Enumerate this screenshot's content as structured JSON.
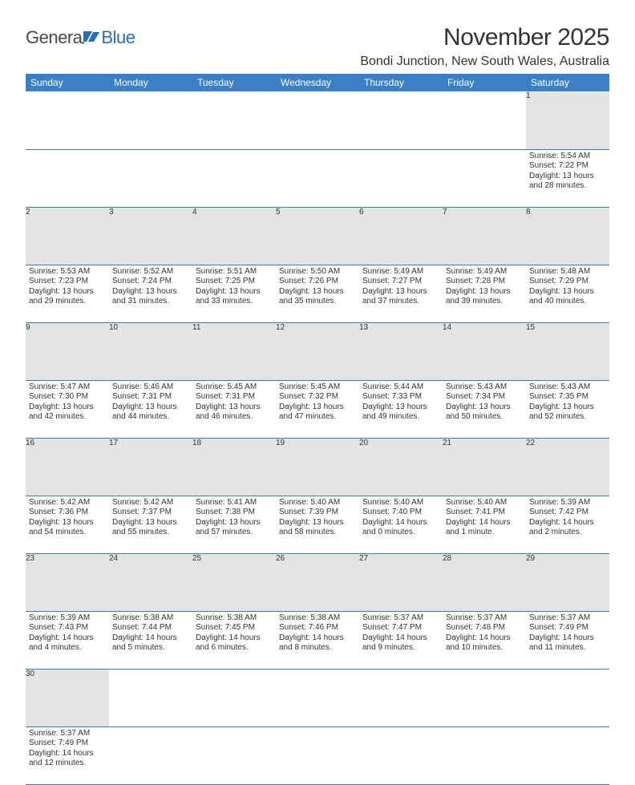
{
  "logo": {
    "part1": "Genera",
    "part2": "Blue"
  },
  "title": "November 2025",
  "location": "Bondi Junction, New South Wales, Australia",
  "colors": {
    "header_bg": "#3b7fc4",
    "header_text": "#ffffff",
    "daynum_bg": "#e4e4e4",
    "rule": "#3b7fc4",
    "logo_accent": "#2a6fb5",
    "text": "#333333"
  },
  "weekdays": [
    "Sunday",
    "Monday",
    "Tuesday",
    "Wednesday",
    "Thursday",
    "Friday",
    "Saturday"
  ],
  "weeks": [
    [
      null,
      null,
      null,
      null,
      null,
      null,
      {
        "d": "1",
        "sr": "Sunrise: 5:54 AM",
        "ss": "Sunset: 7:22 PM",
        "dl1": "Daylight: 13 hours",
        "dl2": "and 28 minutes."
      }
    ],
    [
      {
        "d": "2",
        "sr": "Sunrise: 5:53 AM",
        "ss": "Sunset: 7:23 PM",
        "dl1": "Daylight: 13 hours",
        "dl2": "and 29 minutes."
      },
      {
        "d": "3",
        "sr": "Sunrise: 5:52 AM",
        "ss": "Sunset: 7:24 PM",
        "dl1": "Daylight: 13 hours",
        "dl2": "and 31 minutes."
      },
      {
        "d": "4",
        "sr": "Sunrise: 5:51 AM",
        "ss": "Sunset: 7:25 PM",
        "dl1": "Daylight: 13 hours",
        "dl2": "and 33 minutes."
      },
      {
        "d": "5",
        "sr": "Sunrise: 5:50 AM",
        "ss": "Sunset: 7:26 PM",
        "dl1": "Daylight: 13 hours",
        "dl2": "and 35 minutes."
      },
      {
        "d": "6",
        "sr": "Sunrise: 5:49 AM",
        "ss": "Sunset: 7:27 PM",
        "dl1": "Daylight: 13 hours",
        "dl2": "and 37 minutes."
      },
      {
        "d": "7",
        "sr": "Sunrise: 5:49 AM",
        "ss": "Sunset: 7:28 PM",
        "dl1": "Daylight: 13 hours",
        "dl2": "and 39 minutes."
      },
      {
        "d": "8",
        "sr": "Sunrise: 5:48 AM",
        "ss": "Sunset: 7:29 PM",
        "dl1": "Daylight: 13 hours",
        "dl2": "and 40 minutes."
      }
    ],
    [
      {
        "d": "9",
        "sr": "Sunrise: 5:47 AM",
        "ss": "Sunset: 7:30 PM",
        "dl1": "Daylight: 13 hours",
        "dl2": "and 42 minutes."
      },
      {
        "d": "10",
        "sr": "Sunrise: 5:46 AM",
        "ss": "Sunset: 7:31 PM",
        "dl1": "Daylight: 13 hours",
        "dl2": "and 44 minutes."
      },
      {
        "d": "11",
        "sr": "Sunrise: 5:45 AM",
        "ss": "Sunset: 7:31 PM",
        "dl1": "Daylight: 13 hours",
        "dl2": "and 46 minutes."
      },
      {
        "d": "12",
        "sr": "Sunrise: 5:45 AM",
        "ss": "Sunset: 7:32 PM",
        "dl1": "Daylight: 13 hours",
        "dl2": "and 47 minutes."
      },
      {
        "d": "13",
        "sr": "Sunrise: 5:44 AM",
        "ss": "Sunset: 7:33 PM",
        "dl1": "Daylight: 13 hours",
        "dl2": "and 49 minutes."
      },
      {
        "d": "14",
        "sr": "Sunrise: 5:43 AM",
        "ss": "Sunset: 7:34 PM",
        "dl1": "Daylight: 13 hours",
        "dl2": "and 50 minutes."
      },
      {
        "d": "15",
        "sr": "Sunrise: 5:43 AM",
        "ss": "Sunset: 7:35 PM",
        "dl1": "Daylight: 13 hours",
        "dl2": "and 52 minutes."
      }
    ],
    [
      {
        "d": "16",
        "sr": "Sunrise: 5:42 AM",
        "ss": "Sunset: 7:36 PM",
        "dl1": "Daylight: 13 hours",
        "dl2": "and 54 minutes."
      },
      {
        "d": "17",
        "sr": "Sunrise: 5:42 AM",
        "ss": "Sunset: 7:37 PM",
        "dl1": "Daylight: 13 hours",
        "dl2": "and 55 minutes."
      },
      {
        "d": "18",
        "sr": "Sunrise: 5:41 AM",
        "ss": "Sunset: 7:38 PM",
        "dl1": "Daylight: 13 hours",
        "dl2": "and 57 minutes."
      },
      {
        "d": "19",
        "sr": "Sunrise: 5:40 AM",
        "ss": "Sunset: 7:39 PM",
        "dl1": "Daylight: 13 hours",
        "dl2": "and 58 minutes."
      },
      {
        "d": "20",
        "sr": "Sunrise: 5:40 AM",
        "ss": "Sunset: 7:40 PM",
        "dl1": "Daylight: 14 hours",
        "dl2": "and 0 minutes."
      },
      {
        "d": "21",
        "sr": "Sunrise: 5:40 AM",
        "ss": "Sunset: 7:41 PM",
        "dl1": "Daylight: 14 hours",
        "dl2": "and 1 minute."
      },
      {
        "d": "22",
        "sr": "Sunrise: 5:39 AM",
        "ss": "Sunset: 7:42 PM",
        "dl1": "Daylight: 14 hours",
        "dl2": "and 2 minutes."
      }
    ],
    [
      {
        "d": "23",
        "sr": "Sunrise: 5:39 AM",
        "ss": "Sunset: 7:43 PM",
        "dl1": "Daylight: 14 hours",
        "dl2": "and 4 minutes."
      },
      {
        "d": "24",
        "sr": "Sunrise: 5:38 AM",
        "ss": "Sunset: 7:44 PM",
        "dl1": "Daylight: 14 hours",
        "dl2": "and 5 minutes."
      },
      {
        "d": "25",
        "sr": "Sunrise: 5:38 AM",
        "ss": "Sunset: 7:45 PM",
        "dl1": "Daylight: 14 hours",
        "dl2": "and 6 minutes."
      },
      {
        "d": "26",
        "sr": "Sunrise: 5:38 AM",
        "ss": "Sunset: 7:46 PM",
        "dl1": "Daylight: 14 hours",
        "dl2": "and 8 minutes."
      },
      {
        "d": "27",
        "sr": "Sunrise: 5:37 AM",
        "ss": "Sunset: 7:47 PM",
        "dl1": "Daylight: 14 hours",
        "dl2": "and 9 minutes."
      },
      {
        "d": "28",
        "sr": "Sunrise: 5:37 AM",
        "ss": "Sunset: 7:48 PM",
        "dl1": "Daylight: 14 hours",
        "dl2": "and 10 minutes."
      },
      {
        "d": "29",
        "sr": "Sunrise: 5:37 AM",
        "ss": "Sunset: 7:49 PM",
        "dl1": "Daylight: 14 hours",
        "dl2": "and 11 minutes."
      }
    ],
    [
      {
        "d": "30",
        "sr": "Sunrise: 5:37 AM",
        "ss": "Sunset: 7:49 PM",
        "dl1": "Daylight: 14 hours",
        "dl2": "and 12 minutes."
      },
      null,
      null,
      null,
      null,
      null,
      null
    ]
  ]
}
